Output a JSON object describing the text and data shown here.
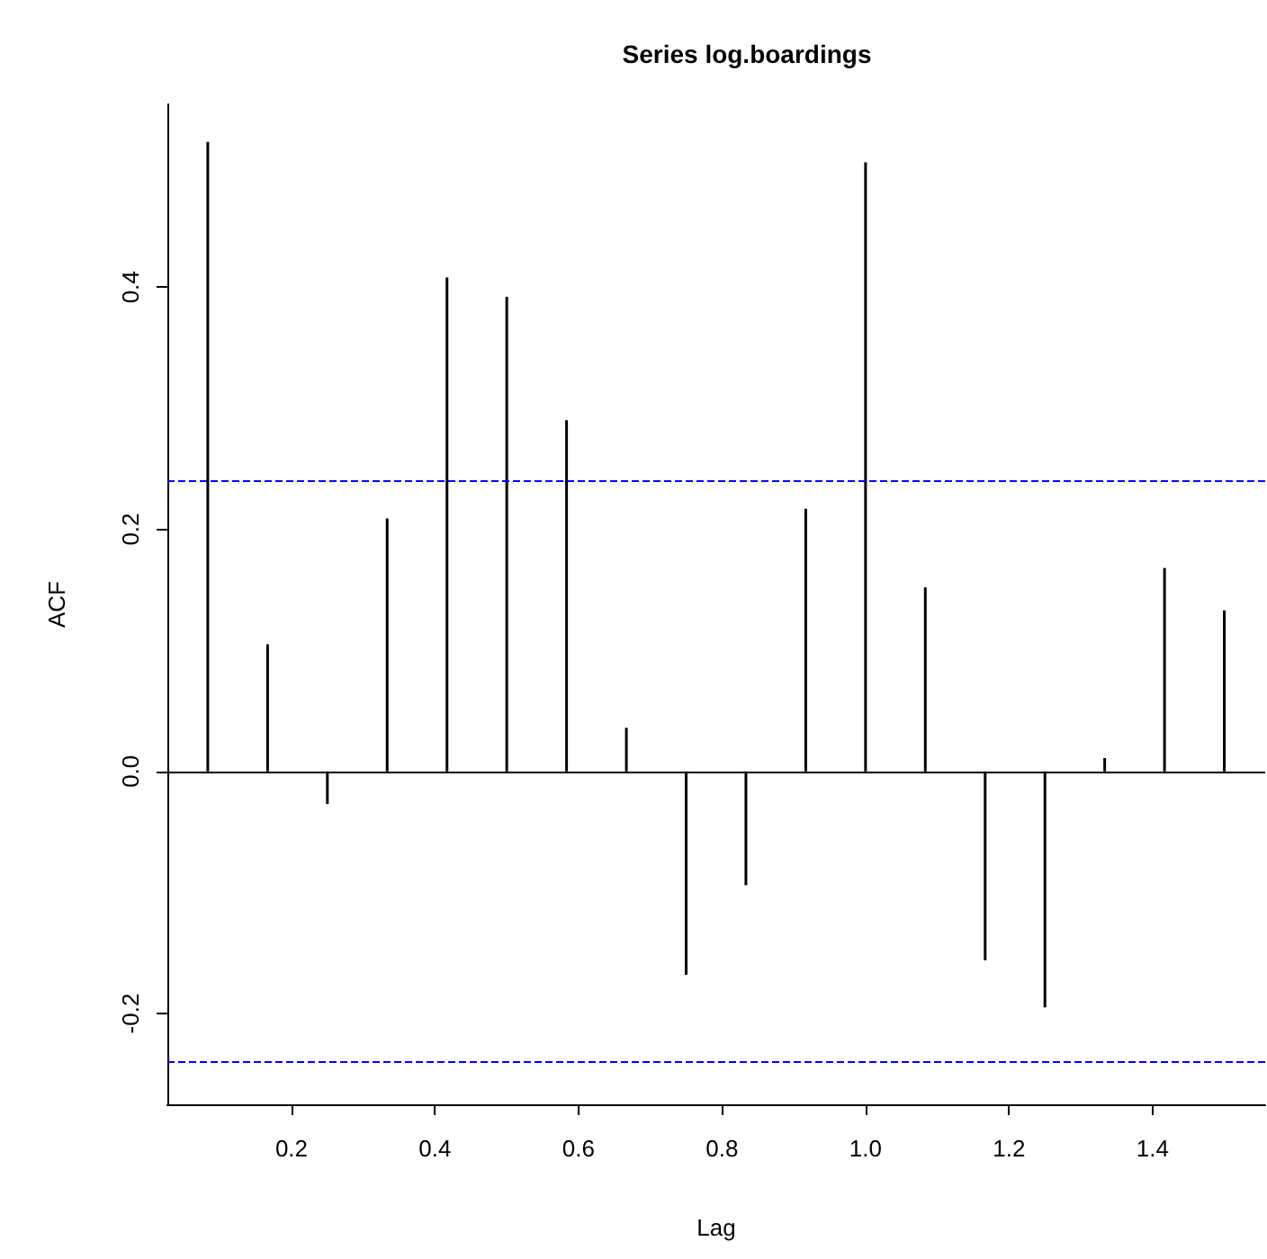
{
  "chart_data": {
    "type": "bar",
    "title": "Series log.boardings",
    "xlabel": "Lag",
    "ylabel": "ACF",
    "x": [
      0.0833,
      0.1667,
      0.25,
      0.3333,
      0.4167,
      0.5,
      0.5833,
      0.6667,
      0.75,
      0.8333,
      0.9167,
      1.0,
      1.0833,
      1.1667,
      1.25,
      1.3333,
      1.4167,
      1.5
    ],
    "series": [
      {
        "color": "#000000",
        "values": [
          0.52,
          0.105,
          -0.027,
          0.209,
          0.408,
          0.392,
          0.29,
          0.036,
          -0.168,
          -0.094,
          0.217,
          0.503,
          0.152,
          -0.156,
          -0.195,
          0.011,
          0.168,
          0.133
        ]
      }
    ],
    "xlim": [
      0.027,
      1.557
    ],
    "ylim": [
      -0.275,
      0.551
    ],
    "xticks": [
      0.2,
      0.4,
      0.6,
      0.8,
      {
        "value": 1,
        "label": "1.0"
      },
      1.2,
      1.4
    ],
    "yticks": [
      -0.2,
      {
        "value": 0,
        "label": "0.0"
      },
      0.2,
      0.4
    ],
    "ref_lines": [
      {
        "axis": "y",
        "value": 0,
        "color": "#000000",
        "line_style": "solid"
      },
      {
        "axis": "y",
        "value": 0.24,
        "color": "#0000ff",
        "line_style": "dashed"
      },
      {
        "axis": "y",
        "value": -0.24,
        "color": "#0000ff",
        "line_style": "dashed"
      }
    ],
    "grid": false
  }
}
